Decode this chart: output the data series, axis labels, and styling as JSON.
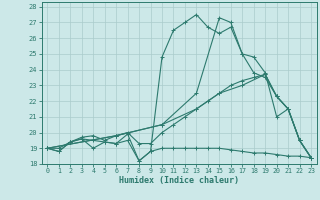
{
  "xlabel": "Humidex (Indice chaleur)",
  "bg_color": "#cce8e8",
  "line_color": "#2d7a6e",
  "grid_color": "#aacccc",
  "xlim": [
    -0.5,
    23.5
  ],
  "ylim": [
    18,
    28.3
  ],
  "xticks": [
    0,
    1,
    2,
    3,
    4,
    5,
    6,
    7,
    8,
    9,
    10,
    11,
    12,
    13,
    14,
    15,
    16,
    17,
    18,
    19,
    20,
    21,
    22,
    23
  ],
  "yticks": [
    18,
    19,
    20,
    21,
    22,
    23,
    24,
    25,
    26,
    27,
    28
  ],
  "lines": [
    {
      "x": [
        0,
        1,
        2,
        3,
        4,
        5,
        6,
        7,
        8,
        9,
        10,
        11,
        12,
        13,
        14,
        15,
        16,
        17,
        18,
        19,
        20,
        21,
        22,
        23
      ],
      "y": [
        19,
        18.8,
        19.4,
        19.6,
        19.5,
        19.4,
        19.3,
        19.5,
        18.2,
        18.8,
        19.0,
        19.0,
        19.0,
        19.0,
        19.0,
        19.0,
        18.9,
        18.8,
        18.7,
        18.7,
        18.6,
        18.5,
        18.5,
        18.4
      ]
    },
    {
      "x": [
        0,
        1,
        2,
        3,
        4,
        5,
        6,
        7,
        8,
        9,
        10,
        11,
        12,
        13,
        14,
        15,
        16,
        17,
        18,
        19,
        20,
        21,
        22,
        23
      ],
      "y": [
        19,
        19.0,
        19.4,
        19.7,
        19.8,
        19.5,
        19.8,
        20.0,
        19.3,
        19.3,
        20.0,
        20.5,
        21.0,
        21.5,
        22.0,
        22.5,
        23.0,
        23.3,
        23.5,
        23.7,
        22.3,
        21.5,
        19.5,
        18.4
      ]
    },
    {
      "x": [
        0,
        6,
        10,
        13,
        15,
        17,
        19,
        20,
        21,
        22,
        23
      ],
      "y": [
        19,
        19.8,
        20.5,
        21.5,
        22.5,
        23.0,
        23.7,
        22.3,
        21.5,
        19.5,
        18.4
      ]
    },
    {
      "x": [
        0,
        1,
        2,
        3,
        4,
        5,
        6,
        7,
        8,
        9,
        10,
        11,
        12,
        13,
        14,
        15,
        16,
        17,
        18,
        19,
        20,
        21,
        22,
        23
      ],
      "y": [
        19,
        18.8,
        19.4,
        19.6,
        19.0,
        19.4,
        19.3,
        19.9,
        18.2,
        18.8,
        24.8,
        26.5,
        27.0,
        27.5,
        26.7,
        26.3,
        26.7,
        25.0,
        24.8,
        23.8,
        21.0,
        21.5,
        19.5,
        18.4
      ]
    },
    {
      "x": [
        0,
        6,
        10,
        13,
        15,
        16,
        17,
        18,
        19,
        20,
        21,
        22,
        23
      ],
      "y": [
        19,
        19.8,
        20.5,
        22.5,
        27.3,
        27.0,
        25.0,
        23.8,
        23.5,
        22.3,
        21.5,
        19.5,
        18.4
      ]
    }
  ]
}
